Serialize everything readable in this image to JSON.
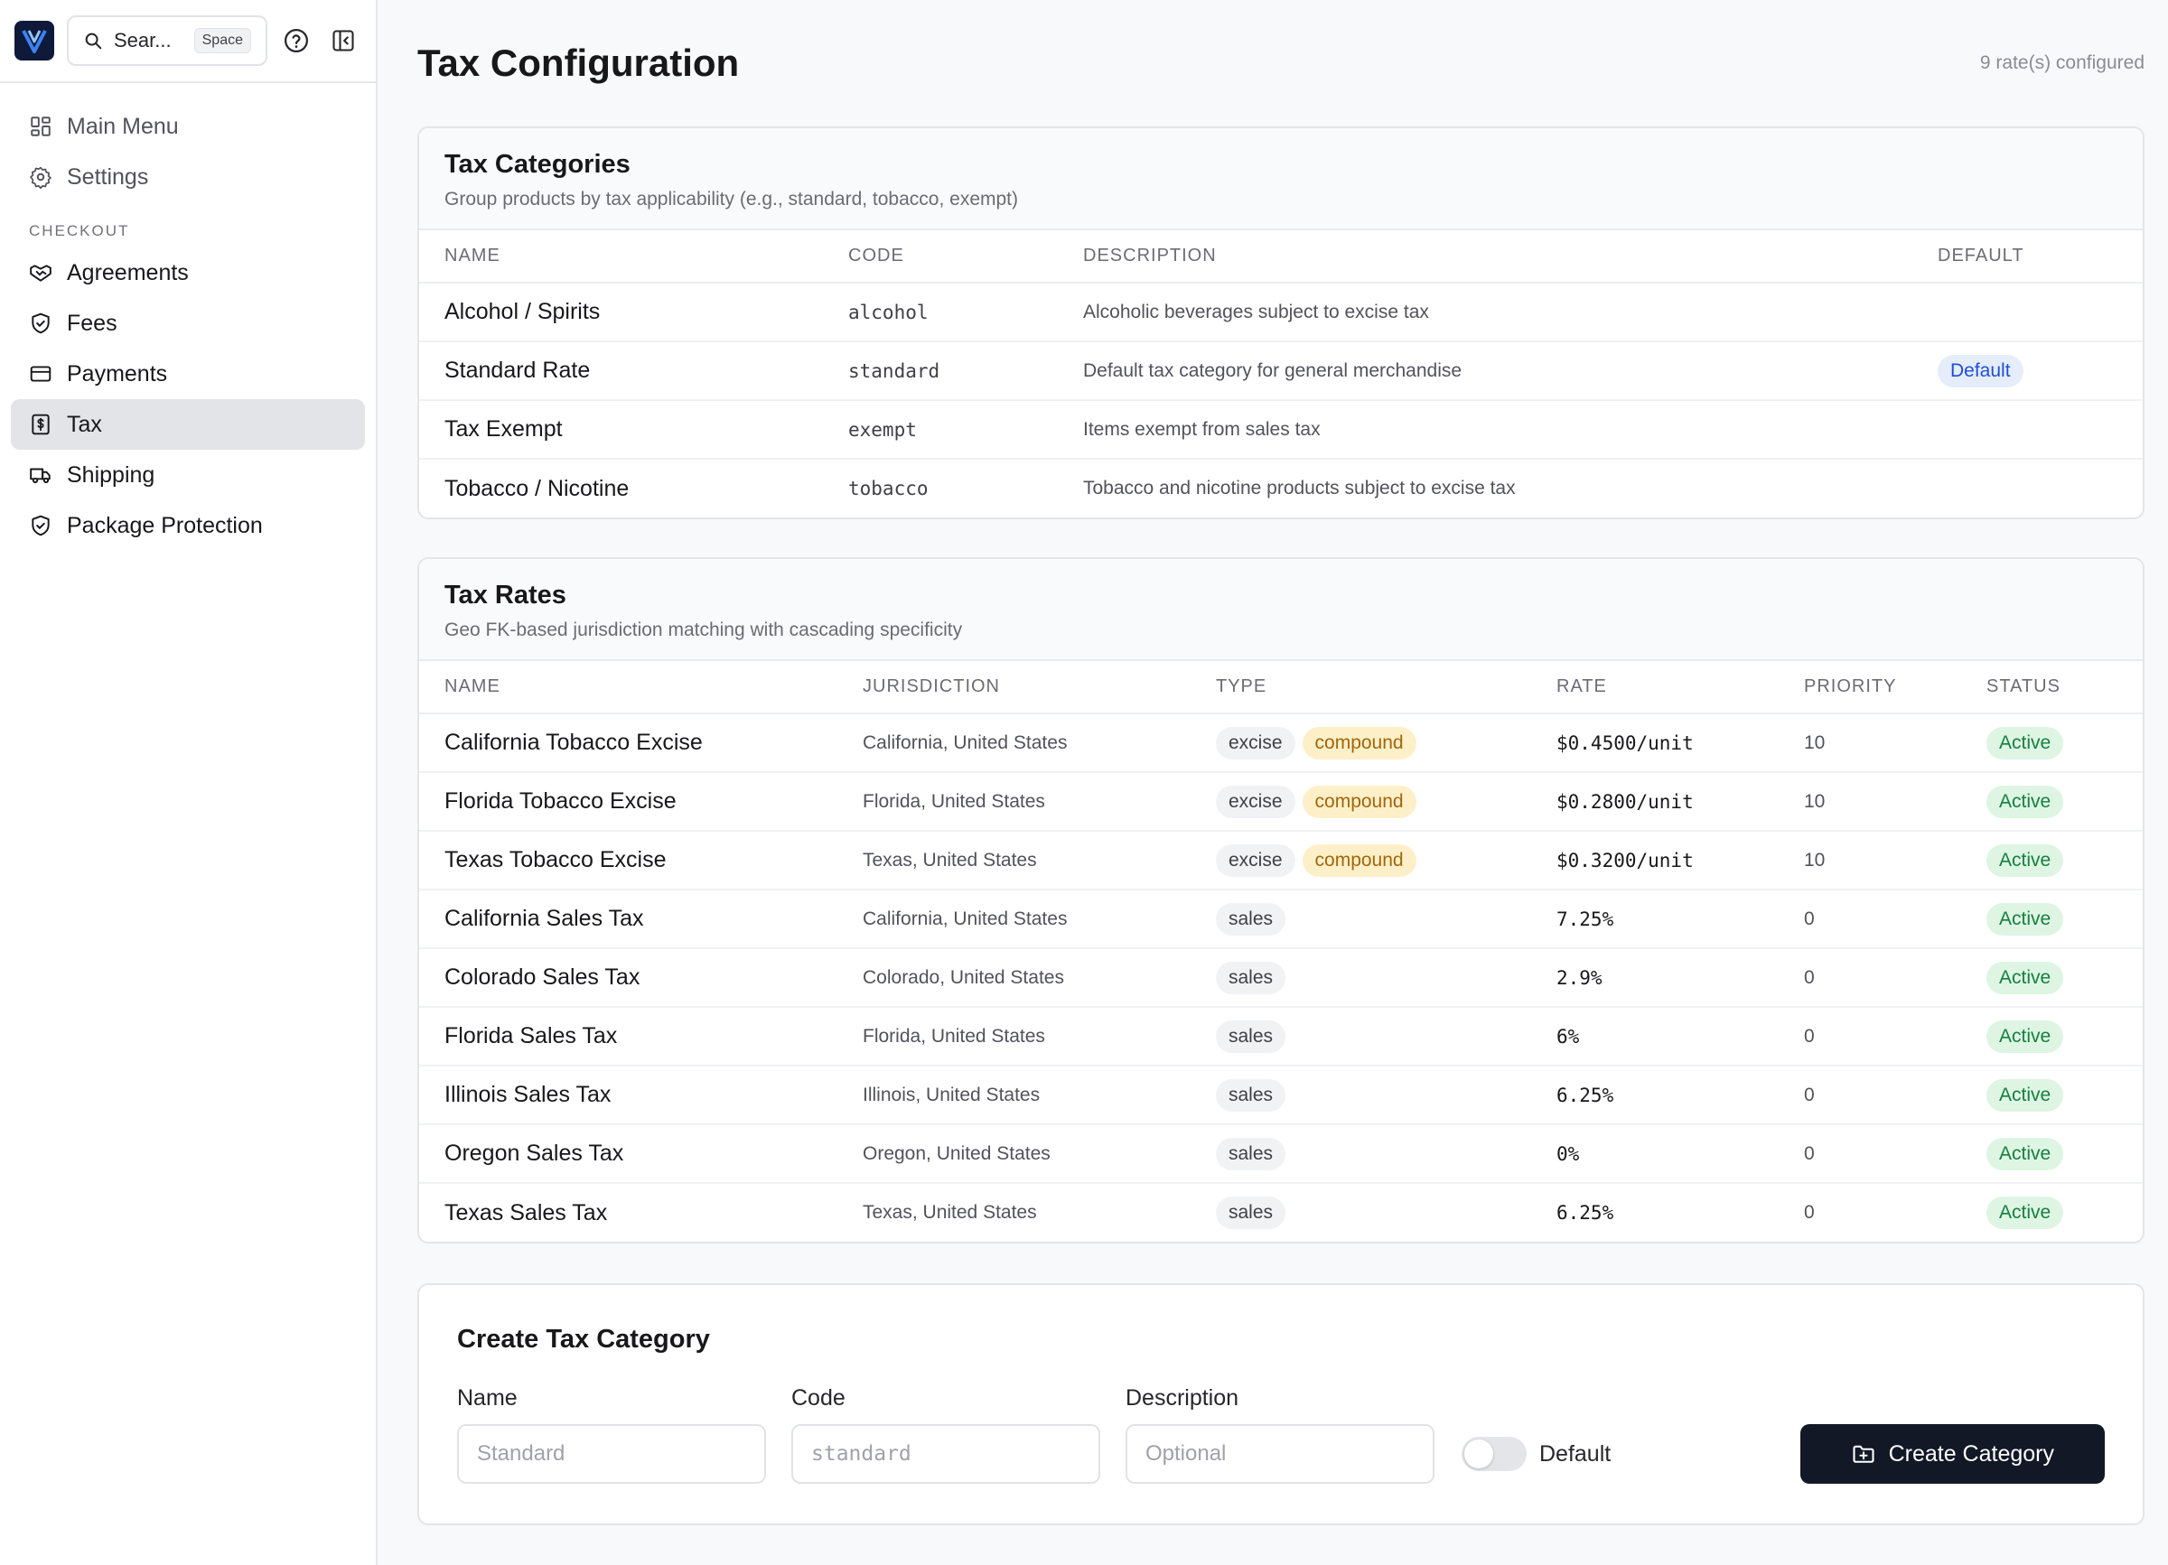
{
  "sidebar": {
    "search_label": "Sear...",
    "search_shortcut": "Space",
    "items_top": [
      {
        "label": "Main Menu",
        "icon": "grid-icon"
      },
      {
        "label": "Settings",
        "icon": "gear-icon"
      }
    ],
    "section_label": "CHECKOUT",
    "items": [
      {
        "label": "Agreements",
        "icon": "handshake-icon"
      },
      {
        "label": "Fees",
        "icon": "shield-icon"
      },
      {
        "label": "Payments",
        "icon": "credit-card-icon"
      },
      {
        "label": "Tax",
        "icon": "receipt-dollar-icon",
        "active": true
      },
      {
        "label": "Shipping",
        "icon": "truck-icon"
      },
      {
        "label": "Package Protection",
        "icon": "shield-check-icon"
      }
    ]
  },
  "page": {
    "title": "Tax Configuration",
    "count": "9 rate(s) configured"
  },
  "categories": {
    "title": "Tax Categories",
    "subtitle": "Group products by tax applicability (e.g., standard, tobacco, exempt)",
    "headers": {
      "name": "NAME",
      "code": "CODE",
      "description": "DESCRIPTION",
      "default": "DEFAULT"
    },
    "rows": [
      {
        "name": "Alcohol / Spirits",
        "code": "alcohol",
        "description": "Alcoholic beverages subject to excise tax",
        "default": ""
      },
      {
        "name": "Standard Rate",
        "code": "standard",
        "description": "Default tax category for general merchandise",
        "default": "Default"
      },
      {
        "name": "Tax Exempt",
        "code": "exempt",
        "description": "Items exempt from sales tax",
        "default": ""
      },
      {
        "name": "Tobacco / Nicotine",
        "code": "tobacco",
        "description": "Tobacco and nicotine products subject to excise tax",
        "default": ""
      }
    ]
  },
  "rates": {
    "title": "Tax Rates",
    "subtitle": "Geo FK-based jurisdiction matching with cascading specificity",
    "headers": {
      "name": "NAME",
      "jurisdiction": "JURISDICTION",
      "type": "TYPE",
      "rate": "RATE",
      "priority": "PRIORITY",
      "status": "STATUS"
    },
    "rows": [
      {
        "name": "California Tobacco Excise",
        "jurisdiction": "California, United States",
        "type": "excise",
        "compound": "compound",
        "rate": "$0.4500/unit",
        "priority": "10",
        "status": "Active"
      },
      {
        "name": "Florida Tobacco Excise",
        "jurisdiction": "Florida, United States",
        "type": "excise",
        "compound": "compound",
        "rate": "$0.2800/unit",
        "priority": "10",
        "status": "Active"
      },
      {
        "name": "Texas Tobacco Excise",
        "jurisdiction": "Texas, United States",
        "type": "excise",
        "compound": "compound",
        "rate": "$0.3200/unit",
        "priority": "10",
        "status": "Active"
      },
      {
        "name": "California Sales Tax",
        "jurisdiction": "California, United States",
        "type": "sales",
        "compound": "",
        "rate": "7.25%",
        "priority": "0",
        "status": "Active"
      },
      {
        "name": "Colorado Sales Tax",
        "jurisdiction": "Colorado, United States",
        "type": "sales",
        "compound": "",
        "rate": "2.9%",
        "priority": "0",
        "status": "Active"
      },
      {
        "name": "Florida Sales Tax",
        "jurisdiction": "Florida, United States",
        "type": "sales",
        "compound": "",
        "rate": "6%",
        "priority": "0",
        "status": "Active"
      },
      {
        "name": "Illinois Sales Tax",
        "jurisdiction": "Illinois, United States",
        "type": "sales",
        "compound": "",
        "rate": "6.25%",
        "priority": "0",
        "status": "Active"
      },
      {
        "name": "Oregon Sales Tax",
        "jurisdiction": "Oregon, United States",
        "type": "sales",
        "compound": "",
        "rate": "0%",
        "priority": "0",
        "status": "Active"
      },
      {
        "name": "Texas Sales Tax",
        "jurisdiction": "Texas, United States",
        "type": "sales",
        "compound": "",
        "rate": "6.25%",
        "priority": "0",
        "status": "Active"
      }
    ]
  },
  "form": {
    "title": "Create Tax Category",
    "name_label": "Name",
    "name_placeholder": "Standard",
    "code_label": "Code",
    "code_placeholder": "standard",
    "description_label": "Description",
    "description_placeholder": "Optional",
    "default_label": "Default",
    "default_on": false,
    "submit_label": "Create Category"
  },
  "colors": {
    "primary_button": "#121826",
    "active_badge": "#15803d",
    "compound_badge": "#a4650b",
    "default_badge": "#1d4ed8"
  }
}
